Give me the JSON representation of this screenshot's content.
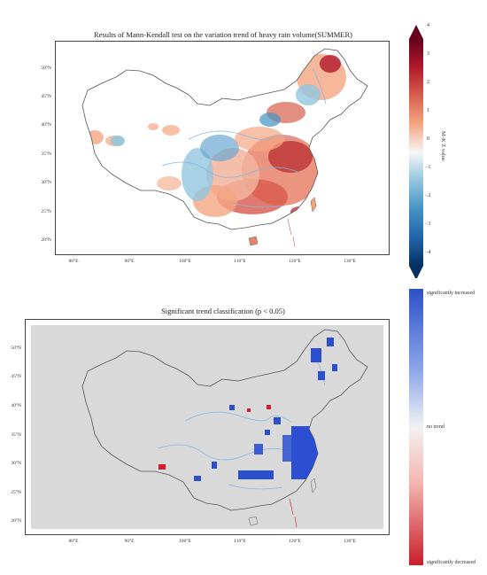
{
  "top_map": {
    "title": "Results of Mann-Kendall test on the variation trend of heavy rain volume(SUMMER)",
    "lat_ticks": [
      "50°N",
      "45°N",
      "40°N",
      "35°N",
      "30°N",
      "25°N",
      "20°N"
    ],
    "lon_ticks": [
      "80°E",
      "90°E",
      "100°E",
      "110°E",
      "120°E",
      "130°E"
    ],
    "colorbar": {
      "label": "M-K Z value",
      "ticks": [
        "4",
        "3",
        "2",
        "1",
        "0",
        "−1",
        "−2",
        "−3",
        "−4"
      ],
      "min": -4,
      "max": 4,
      "colors": [
        "#053061",
        "#2166ac",
        "#4393c3",
        "#92c5de",
        "#f7f7f7",
        "#f4a582",
        "#d6604d",
        "#b2182b",
        "#67001f"
      ]
    }
  },
  "bottom_map": {
    "title": "Significant trend classification (p < 0.05)",
    "lat_ticks": [
      "50°N",
      "45°N",
      "40°N",
      "35°N",
      "30°N",
      "25°N",
      "20°N"
    ],
    "lon_ticks": [
      "80°E",
      "90°E",
      "100°E",
      "110°E",
      "120°E",
      "130°E"
    ],
    "legend": {
      "top": "significantly increased",
      "middle": "no trend",
      "bottom": "significantly decreased",
      "colors": [
        "#c81e2a",
        "#f4b6b0",
        "#f2f2f2",
        "#8fa8ea",
        "#2e50c8"
      ]
    }
  },
  "colors": {
    "land_bg": "#ffffff",
    "sea_bg": "#d9d9d9",
    "border": "#555555",
    "river": "#7fb6e6",
    "increase": "#2b4fd0",
    "decrease": "#d41c2c"
  }
}
